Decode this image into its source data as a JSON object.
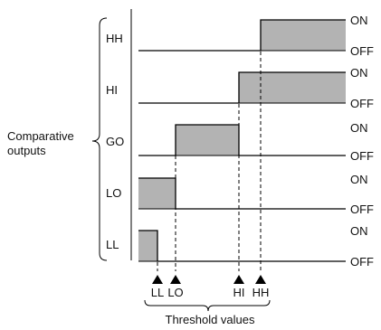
{
  "group_label": {
    "line1": "Comparative",
    "line2": "outputs"
  },
  "axis_label": "Threshold values",
  "state_on": "ON",
  "state_off": "OFF",
  "fill_color": "#b3b3b3",
  "line_color": "#000000",
  "rows": [
    {
      "id": "hh",
      "label": "HH"
    },
    {
      "id": "hi",
      "label": "HI"
    },
    {
      "id": "go",
      "label": "GO"
    },
    {
      "id": "lo",
      "label": "LO"
    },
    {
      "id": "ll",
      "label": "LL"
    }
  ],
  "thresholds": [
    {
      "id": "ll",
      "label": "LL"
    },
    {
      "id": "lo",
      "label": "LO"
    },
    {
      "id": "hi",
      "label": "HI"
    },
    {
      "id": "hh",
      "label": "HH"
    }
  ]
}
